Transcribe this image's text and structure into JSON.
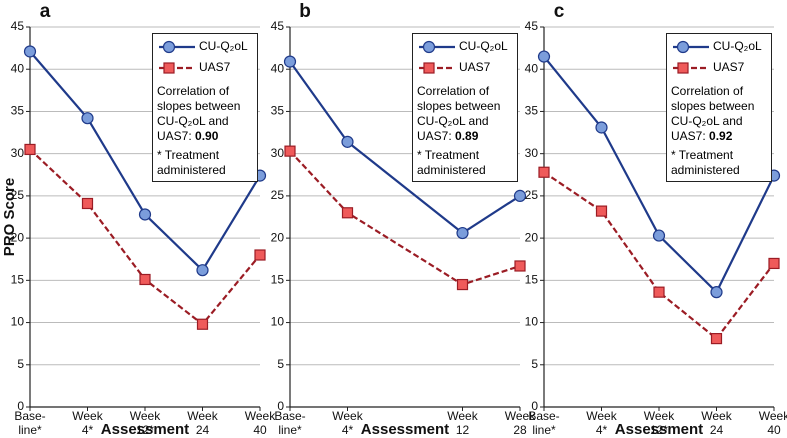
{
  "chart_data": [
    {
      "type": "line",
      "panel_label": "a",
      "ylabel": "PRO Score",
      "xlabel": "Assessment",
      "categories": [
        [
          "Base-",
          "line*"
        ],
        [
          "Week",
          "4*"
        ],
        [
          "Week",
          "12*"
        ],
        [
          "Week",
          "24"
        ],
        [
          "Week",
          "40"
        ]
      ],
      "series": [
        {
          "name": "CU-Q₂oL",
          "color": "#1f3a8a",
          "values": [
            42.1,
            34.2,
            22.8,
            16.2,
            27.4
          ]
        },
        {
          "name": "UAS7",
          "color": "#9b1c24",
          "values": [
            30.5,
            24.1,
            15.1,
            9.8,
            18.0
          ]
        }
      ],
      "ylim": [
        0,
        45
      ],
      "yticks": [
        0,
        5,
        10,
        15,
        20,
        25,
        30,
        35,
        40,
        45
      ],
      "grid": true,
      "legend": "upper right",
      "annotation": "Correlation of slopes between CU-Q₂oL and UAS7:",
      "correlation": "0.90",
      "footnote": "* Treatment administered"
    },
    {
      "type": "line",
      "panel_label": "b",
      "xlabel": "Assessment",
      "categories": [
        [
          "Base-",
          "line*"
        ],
        [
          "Week",
          "4*"
        ],
        [
          "Week",
          "12"
        ],
        [
          "Week",
          "28"
        ]
      ],
      "series": [
        {
          "name": "CU-Q₂oL",
          "color": "#1f3a8a",
          "values": [
            40.9,
            31.4,
            20.6,
            25.0
          ]
        },
        {
          "name": "UAS7",
          "color": "#9b1c24",
          "values": [
            30.3,
            23.0,
            14.5,
            16.7
          ]
        }
      ],
      "ylim": [
        0,
        45
      ],
      "yticks": [
        0,
        5,
        10,
        15,
        20,
        25,
        30,
        35,
        40,
        45
      ],
      "grid": true,
      "legend": "upper right",
      "annotation": "Correlation of slopes between CU-Q₂oL and UAS7:",
      "correlation": "0.89",
      "footnote": "* Treatment administered"
    },
    {
      "type": "line",
      "panel_label": "c",
      "xlabel": "Assessment",
      "categories": [
        [
          "Base-",
          "line*"
        ],
        [
          "Week",
          "4*"
        ],
        [
          "Week",
          "12*"
        ],
        [
          "Week",
          "24"
        ],
        [
          "Week",
          "40"
        ]
      ],
      "series": [
        {
          "name": "CU-Q₂oL",
          "color": "#1f3a8a",
          "values": [
            41.5,
            33.1,
            20.3,
            13.6,
            27.4
          ]
        },
        {
          "name": "UAS7",
          "color": "#9b1c24",
          "values": [
            27.8,
            23.2,
            13.6,
            8.1,
            17.0
          ]
        }
      ],
      "ylim": [
        0,
        45
      ],
      "yticks": [
        0,
        5,
        10,
        15,
        20,
        25,
        30,
        35,
        40,
        45
      ],
      "grid": true,
      "legend": "upper right",
      "annotation": "Correlation of slopes between CU-Q₂oL and UAS7:",
      "correlation": "0.92",
      "footnote": "* Treatment administered"
    }
  ]
}
